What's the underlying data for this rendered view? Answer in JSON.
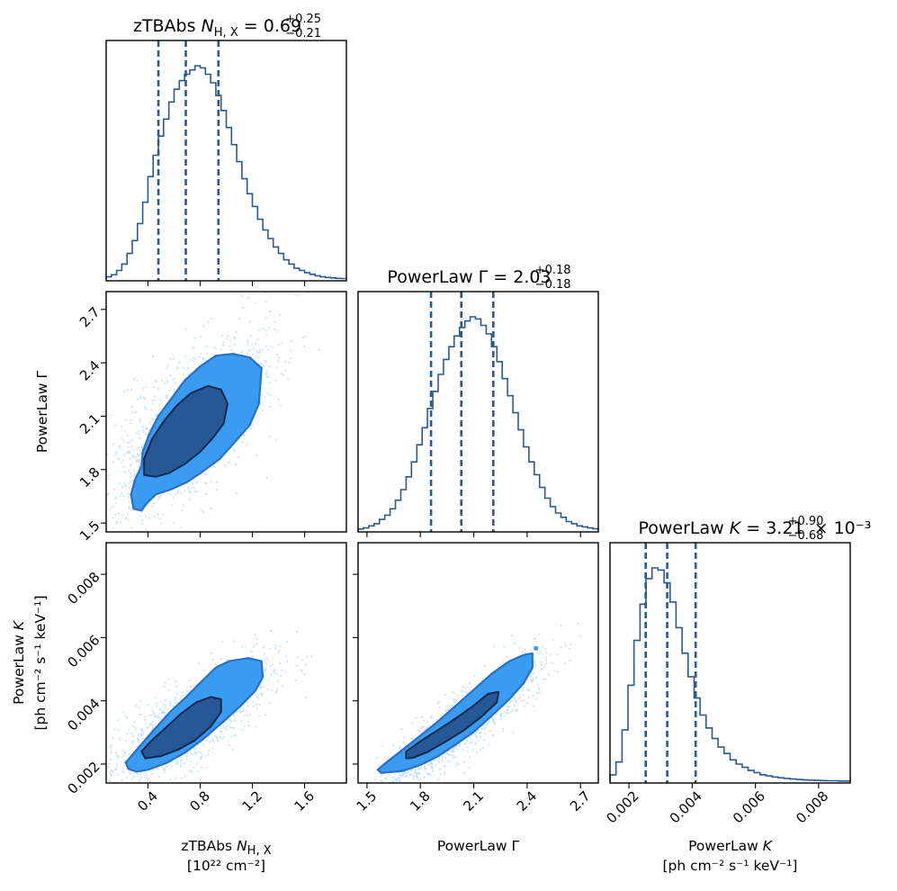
{
  "chart_data": {
    "type": "corner",
    "colors": {
      "points": "#bcdcf7",
      "outer_contour_fill": "#3a9cf0",
      "outer_contour_edge": "#2a6fc8",
      "inner_contour_fill": "#275896",
      "inner_contour_edge": "#0e2a50",
      "hist_line": "#2b5a92"
    },
    "parameters": [
      {
        "id": "nh",
        "title_prefix": "zTBAbs ",
        "title_symbol": "N",
        "title_symbol_sub": "H, X",
        "title_value": " = 0.69",
        "title_err_plus": "+0.25",
        "title_err_minus": "−0.21",
        "title_suffix": "",
        "label_line1": "zTBAbs N",
        "label_line1_sub": "H, X",
        "label_line2": "[10²² cm⁻²]",
        "range": [
          0.08,
          1.92
        ],
        "ticks": [
          0.4,
          0.8,
          1.2,
          1.6
        ],
        "tick_labels": [
          "0.4",
          "0.8",
          "1.2",
          "1.6"
        ],
        "quantiles": [
          0.48,
          0.69,
          0.94
        ],
        "hist": [
          0.01,
          0.02,
          0.04,
          0.07,
          0.12,
          0.18,
          0.26,
          0.36,
          0.48,
          0.58,
          0.67,
          0.75,
          0.83,
          0.89,
          0.93,
          0.96,
          0.98,
          1.0,
          0.99,
          0.96,
          0.92,
          0.86,
          0.79,
          0.71,
          0.63,
          0.55,
          0.47,
          0.4,
          0.34,
          0.28,
          0.23,
          0.19,
          0.15,
          0.12,
          0.09,
          0.07,
          0.05,
          0.04,
          0.03,
          0.022,
          0.015,
          0.01,
          0.007,
          0.005,
          0.003,
          0.002
        ]
      },
      {
        "id": "gamma",
        "title_prefix": "PowerLaw Γ",
        "title_symbol": "",
        "title_symbol_sub": "",
        "title_value": " = 2.03",
        "title_err_plus": "+0.18",
        "title_err_minus": "−0.18",
        "title_suffix": "",
        "label_line1": "PowerLaw Γ",
        "label_line1_sub": "",
        "label_line2": "",
        "range": [
          1.45,
          2.8
        ],
        "ticks": [
          1.5,
          1.8,
          2.1,
          2.4,
          2.7
        ],
        "tick_labels": [
          "1.5",
          "1.8",
          "2.1",
          "2.4",
          "2.7"
        ],
        "quantiles": [
          1.86,
          2.03,
          2.21
        ],
        "hist": [
          0.005,
          0.01,
          0.02,
          0.03,
          0.05,
          0.07,
          0.1,
          0.14,
          0.19,
          0.25,
          0.32,
          0.4,
          0.48,
          0.57,
          0.65,
          0.73,
          0.8,
          0.86,
          0.91,
          0.95,
          0.98,
          1.0,
          0.99,
          0.96,
          0.92,
          0.86,
          0.79,
          0.71,
          0.63,
          0.55,
          0.47,
          0.39,
          0.32,
          0.26,
          0.2,
          0.15,
          0.11,
          0.08,
          0.06,
          0.04,
          0.03,
          0.02,
          0.015,
          0.01,
          0.006
        ]
      },
      {
        "id": "norm",
        "title_prefix": "PowerLaw ",
        "title_symbol": "K",
        "title_symbol_sub": "",
        "title_value": " = 3.21",
        "title_err_plus": "+0.90",
        "title_err_minus": "−0.68",
        "title_suffix": " × 10⁻³",
        "label_line1": "PowerLaw K",
        "label_line1_sub": "",
        "label_line2": "[ph cm⁻² s⁻¹ keV⁻¹]",
        "range": [
          0.0014,
          0.009
        ],
        "ticks": [
          0.002,
          0.004,
          0.006,
          0.008
        ],
        "tick_labels": [
          "0.002",
          "0.004",
          "0.006",
          "0.008"
        ],
        "quantiles": [
          0.00253,
          0.00321,
          0.00411
        ],
        "hist": [
          0.03,
          0.09,
          0.24,
          0.45,
          0.66,
          0.83,
          0.95,
          1.0,
          0.99,
          0.93,
          0.84,
          0.72,
          0.6,
          0.49,
          0.39,
          0.31,
          0.25,
          0.2,
          0.16,
          0.13,
          0.1,
          0.08,
          0.065,
          0.05,
          0.04,
          0.03,
          0.025,
          0.02,
          0.016,
          0.013,
          0.01,
          0.008,
          0.006,
          0.005,
          0.004,
          0.003,
          0.002,
          0.002,
          0.001,
          0.001
        ]
      }
    ],
    "pairs": [
      {
        "x": "nh",
        "y": "gamma",
        "outer_contour": [
          [
            0.35,
            1.57
          ],
          [
            0.29,
            1.58
          ],
          [
            0.27,
            1.66
          ],
          [
            0.3,
            1.74
          ],
          [
            0.35,
            1.82
          ],
          [
            0.36,
            1.9
          ],
          [
            0.41,
            2.0
          ],
          [
            0.48,
            2.1
          ],
          [
            0.58,
            2.2
          ],
          [
            0.68,
            2.3
          ],
          [
            0.8,
            2.38
          ],
          [
            0.92,
            2.44
          ],
          [
            1.05,
            2.45
          ],
          [
            1.18,
            2.43
          ],
          [
            1.27,
            2.37
          ],
          [
            1.26,
            2.27
          ],
          [
            1.25,
            2.17
          ],
          [
            1.18,
            2.05
          ],
          [
            1.06,
            1.95
          ],
          [
            0.95,
            1.86
          ],
          [
            0.82,
            1.79
          ],
          [
            0.7,
            1.73
          ],
          [
            0.58,
            1.69
          ],
          [
            0.46,
            1.66
          ],
          [
            0.39,
            1.61
          ]
        ],
        "inner_contour": [
          [
            0.37,
            1.77
          ],
          [
            0.37,
            1.86
          ],
          [
            0.43,
            1.97
          ],
          [
            0.52,
            2.07
          ],
          [
            0.62,
            2.16
          ],
          [
            0.73,
            2.23
          ],
          [
            0.86,
            2.27
          ],
          [
            0.96,
            2.25
          ],
          [
            1.01,
            2.17
          ],
          [
            0.98,
            2.06
          ],
          [
            0.9,
            1.98
          ],
          [
            0.8,
            1.9
          ],
          [
            0.68,
            1.83
          ],
          [
            0.56,
            1.78
          ],
          [
            0.46,
            1.76
          ]
        ],
        "scatter_center": [
          0.69,
          2.03
        ],
        "scatter_sigma": [
          0.26,
          0.21
        ],
        "scatter_corr": 0.72
      },
      {
        "x": "nh",
        "y": "norm",
        "outer_contour": [
          [
            0.25,
            0.00185
          ],
          [
            0.23,
            0.00205
          ],
          [
            0.32,
            0.00248
          ],
          [
            0.44,
            0.00305
          ],
          [
            0.57,
            0.00365
          ],
          [
            0.7,
            0.00415
          ],
          [
            0.82,
            0.00465
          ],
          [
            0.92,
            0.00505
          ],
          [
            1.02,
            0.00525
          ],
          [
            1.17,
            0.00535
          ],
          [
            1.27,
            0.00525
          ],
          [
            1.28,
            0.00475
          ],
          [
            1.22,
            0.0043
          ],
          [
            1.1,
            0.0038
          ],
          [
            0.96,
            0.00328
          ],
          [
            0.82,
            0.00278
          ],
          [
            0.68,
            0.00235
          ],
          [
            0.54,
            0.00203
          ],
          [
            0.4,
            0.00182
          ],
          [
            0.31,
            0.00176
          ]
        ],
        "inner_contour": [
          [
            0.38,
            0.00218
          ],
          [
            0.35,
            0.0024
          ],
          [
            0.43,
            0.00275
          ],
          [
            0.55,
            0.0032
          ],
          [
            0.66,
            0.00362
          ],
          [
            0.77,
            0.00395
          ],
          [
            0.88,
            0.00412
          ],
          [
            0.96,
            0.00405
          ],
          [
            0.96,
            0.00365
          ],
          [
            0.88,
            0.00318
          ],
          [
            0.76,
            0.00275
          ],
          [
            0.63,
            0.00245
          ],
          [
            0.5,
            0.00225
          ]
        ],
        "scatter_center": [
          0.69,
          0.00321
        ],
        "scatter_sigma": [
          0.26,
          0.00085
        ],
        "scatter_corr": 0.78
      },
      {
        "x": "gamma",
        "y": "norm",
        "outer_contour": [
          [
            1.58,
            0.00172
          ],
          [
            1.56,
            0.00182
          ],
          [
            1.62,
            0.0021
          ],
          [
            1.7,
            0.00245
          ],
          [
            1.8,
            0.0029
          ],
          [
            1.9,
            0.00335
          ],
          [
            2.0,
            0.00385
          ],
          [
            2.1,
            0.00435
          ],
          [
            2.2,
            0.00485
          ],
          [
            2.3,
            0.00525
          ],
          [
            2.38,
            0.00545
          ],
          [
            2.43,
            0.0055
          ],
          [
            2.43,
            0.00505
          ],
          [
            2.38,
            0.00455
          ],
          [
            2.3,
            0.00405
          ],
          [
            2.2,
            0.00352
          ],
          [
            2.1,
            0.00302
          ],
          [
            2.0,
            0.00262
          ],
          [
            1.9,
            0.00225
          ],
          [
            1.8,
            0.00197
          ],
          [
            1.7,
            0.00178
          ]
        ],
        "inner_contour": [
          [
            1.72,
            0.00218
          ],
          [
            1.72,
            0.0024
          ],
          [
            1.8,
            0.00272
          ],
          [
            1.9,
            0.00308
          ],
          [
            2.0,
            0.00345
          ],
          [
            2.1,
            0.00385
          ],
          [
            2.18,
            0.00422
          ],
          [
            2.24,
            0.00428
          ],
          [
            2.23,
            0.00395
          ],
          [
            2.14,
            0.00348
          ],
          [
            2.04,
            0.00305
          ],
          [
            1.94,
            0.0027
          ],
          [
            1.84,
            0.00238
          ],
          [
            1.76,
            0.0022
          ]
        ],
        "scatter_center": [
          2.03,
          0.00321
        ],
        "scatter_sigma": [
          0.18,
          0.00085
        ],
        "scatter_corr": 0.9,
        "dots": [
          [
            2.45,
            0.00566
          ]
        ]
      }
    ]
  }
}
